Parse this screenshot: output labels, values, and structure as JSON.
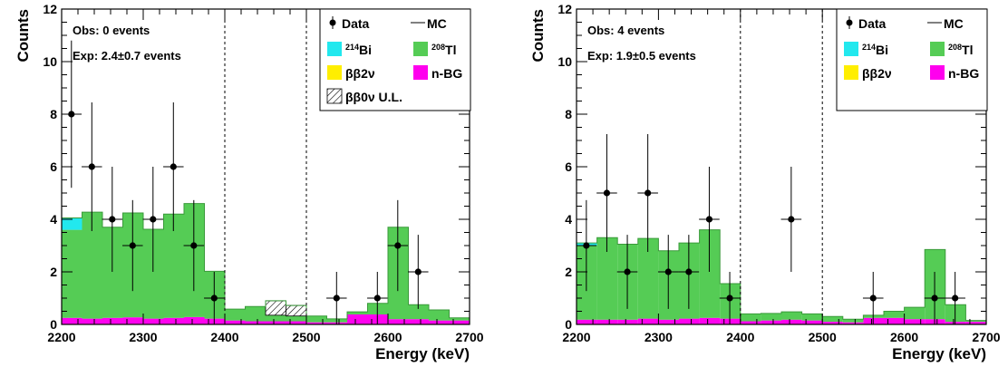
{
  "chart_data": [
    {
      "type": "bar",
      "xlabel": "Energy (keV)",
      "ylabel": "Counts",
      "xlim": [
        2200,
        2700
      ],
      "ylim": [
        0,
        12
      ],
      "xticks": [
        2200,
        2300,
        2400,
        2500,
        2600,
        2700
      ],
      "yticks": [
        0,
        2,
        4,
        6,
        8,
        10,
        12
      ],
      "vlines": [
        2400,
        2500
      ],
      "annotations": [
        "Obs: 0 events",
        "Exp: 2.4±0.7 events"
      ],
      "legend": {
        "placement": "top-right",
        "data_label": "Data",
        "mc_label": "MC",
        "entries": [
          {
            "sup": "214",
            "label": "Bi",
            "color": "#22e8ee"
          },
          {
            "sup": "208",
            "label": "Tl",
            "color": "#55cc55"
          },
          {
            "sup": "",
            "label": "ββ2ν",
            "color": "#ffee00"
          },
          {
            "sup": "",
            "label": "n-BG",
            "color": "#ff00ee"
          },
          {
            "sup": "",
            "label": "ββ0ν  U.L.",
            "color": "hatch"
          }
        ]
      },
      "bin_edges": [
        2200,
        2225,
        2250,
        2275,
        2300,
        2325,
        2350,
        2375,
        2400,
        2425,
        2450,
        2475,
        2500,
        2525,
        2550,
        2575,
        2600,
        2625,
        2650,
        2675,
        2700
      ],
      "series": [
        {
          "name": "n-BG",
          "color": "#ff00ee",
          "values": [
            0.25,
            0.22,
            0.25,
            0.27,
            0.22,
            0.25,
            0.28,
            0.22,
            0.15,
            0.12,
            0.12,
            0.12,
            0.08,
            0.08,
            0.38,
            0.38,
            0.2,
            0.2,
            0.15,
            0.15
          ]
        },
        {
          "name": "Tl",
          "color": "#55cc55",
          "values": [
            3.35,
            4.05,
            3.45,
            3.97,
            3.4,
            3.95,
            4.32,
            1.8,
            0.43,
            0.56,
            0.23,
            0.2,
            0.24,
            0.13,
            0.1,
            0.42,
            3.5,
            0.55,
            0.4,
            0.1
          ]
        },
        {
          "name": "Bi",
          "color": "#22e8ee",
          "values": [
            0.45,
            0,
            0,
            0,
            0,
            0,
            0,
            0,
            0,
            0,
            0,
            0,
            0,
            0,
            0,
            0,
            0,
            0,
            0,
            0
          ]
        },
        {
          "name": "ββ0ν U.L.",
          "color": "hatch",
          "values": [
            0,
            0,
            0,
            0,
            0,
            0,
            0,
            0,
            0,
            0,
            0.55,
            0.4,
            0,
            0,
            0,
            0,
            0,
            0,
            0,
            0
          ]
        }
      ],
      "points": [
        {
          "x": 2212,
          "y": 8,
          "err": 2.8
        },
        {
          "x": 2237,
          "y": 6,
          "err": 2.45
        },
        {
          "x": 2262,
          "y": 4,
          "err": 2.0
        },
        {
          "x": 2287,
          "y": 3,
          "err": 1.73
        },
        {
          "x": 2312,
          "y": 4,
          "err": 2.0
        },
        {
          "x": 2337,
          "y": 6,
          "err": 2.45
        },
        {
          "x": 2362,
          "y": 3,
          "err": 1.73
        },
        {
          "x": 2387,
          "y": 1,
          "err": 1.0
        },
        {
          "x": 2537,
          "y": 1,
          "err": 1.0
        },
        {
          "x": 2587,
          "y": 1,
          "err": 1.0
        },
        {
          "x": 2612,
          "y": 3,
          "err": 1.73
        },
        {
          "x": 2637,
          "y": 2,
          "err": 1.41
        }
      ]
    },
    {
      "type": "bar",
      "xlabel": "Energy (keV)",
      "ylabel": "Counts",
      "xlim": [
        2200,
        2700
      ],
      "ylim": [
        0,
        12
      ],
      "xticks": [
        2200,
        2300,
        2400,
        2500,
        2600,
        2700
      ],
      "yticks": [
        0,
        2,
        4,
        6,
        8,
        10,
        12
      ],
      "vlines": [
        2400,
        2500
      ],
      "annotations": [
        "Obs: 4 events",
        "Exp: 1.9±0.5 events"
      ],
      "legend": {
        "placement": "top-right",
        "data_label": "Data",
        "mc_label": "MC",
        "entries": [
          {
            "sup": "214",
            "label": "Bi",
            "color": "#22e8ee"
          },
          {
            "sup": "208",
            "label": "Tl",
            "color": "#55cc55"
          },
          {
            "sup": "",
            "label": "ββ2ν",
            "color": "#ffee00"
          },
          {
            "sup": "",
            "label": "n-BG",
            "color": "#ff00ee"
          }
        ]
      },
      "bin_edges": [
        2200,
        2225,
        2250,
        2275,
        2300,
        2325,
        2350,
        2375,
        2400,
        2425,
        2450,
        2475,
        2500,
        2525,
        2550,
        2575,
        2600,
        2625,
        2650,
        2675,
        2700
      ],
      "series": [
        {
          "name": "n-BG",
          "color": "#ff00ee",
          "values": [
            0.18,
            0.18,
            0.18,
            0.22,
            0.18,
            0.22,
            0.25,
            0.22,
            0.12,
            0.15,
            0.18,
            0.15,
            0.1,
            0.08,
            0.25,
            0.25,
            0.2,
            0.2,
            0.1,
            0.1
          ]
        },
        {
          "name": "Tl",
          "color": "#55cc55",
          "values": [
            2.82,
            3.12,
            2.87,
            3.05,
            2.62,
            2.88,
            3.35,
            1.33,
            0.28,
            0.27,
            0.3,
            0.25,
            0.2,
            0.12,
            0.1,
            0.25,
            0.45,
            2.65,
            0.65,
            0.05
          ]
        },
        {
          "name": "Bi",
          "color": "#22e8ee",
          "values": [
            0.1,
            0,
            0,
            0,
            0,
            0,
            0,
            0,
            0,
            0,
            0,
            0,
            0,
            0,
            0,
            0,
            0,
            0,
            0,
            0
          ]
        }
      ],
      "points": [
        {
          "x": 2212,
          "y": 3,
          "err": 1.73
        },
        {
          "x": 2237,
          "y": 5,
          "err": 2.24
        },
        {
          "x": 2262,
          "y": 2,
          "err": 1.41
        },
        {
          "x": 2287,
          "y": 5,
          "err": 2.24
        },
        {
          "x": 2312,
          "y": 2,
          "err": 1.41
        },
        {
          "x": 2337,
          "y": 2,
          "err": 1.41
        },
        {
          "x": 2362,
          "y": 4,
          "err": 2.0
        },
        {
          "x": 2387,
          "y": 1,
          "err": 1.0
        },
        {
          "x": 2462,
          "y": 4,
          "err": 2.0
        },
        {
          "x": 2562,
          "y": 1,
          "err": 1.0
        },
        {
          "x": 2637,
          "y": 1,
          "err": 1.0
        },
        {
          "x": 2662,
          "y": 1,
          "err": 1.0
        }
      ]
    }
  ]
}
